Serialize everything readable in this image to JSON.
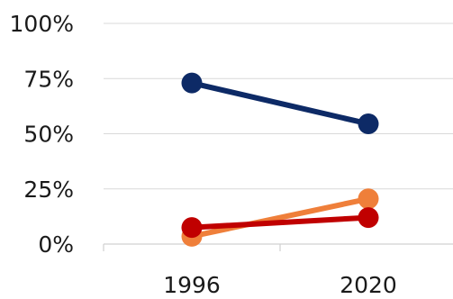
{
  "chart_data": {
    "type": "line",
    "categories": [
      "1996",
      "2020"
    ],
    "series": [
      {
        "values": [
          73,
          54.5
        ],
        "color": "#0d2a66"
      },
      {
        "values": [
          3.5,
          20.5
        ],
        "color": "#ef7f3a"
      },
      {
        "values": [
          7.5,
          12
        ],
        "color": "#c00000"
      }
    ],
    "yticks": [
      "0%",
      "25%",
      "50%",
      "75%",
      "100%"
    ],
    "ylim": [
      0,
      100
    ],
    "grid": true,
    "legend": "none"
  }
}
